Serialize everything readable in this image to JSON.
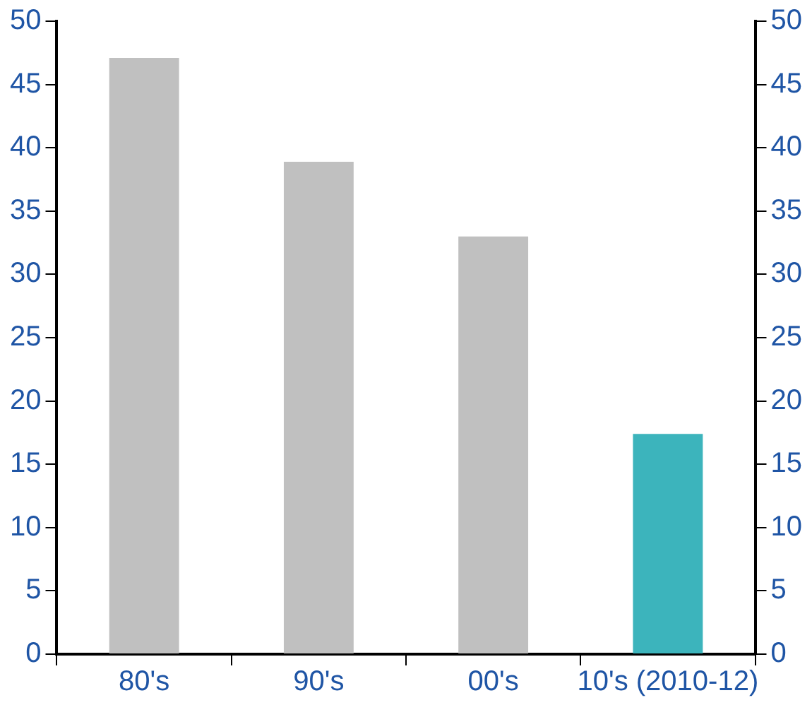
{
  "chart_data": {
    "type": "bar",
    "categories": [
      "80's",
      "90's",
      "00's",
      "10's (2010-12)"
    ],
    "values": [
      47.1,
      38.9,
      33.0,
      17.4
    ],
    "colors": [
      "#c0c0c0",
      "#c0c0c0",
      "#c0c0c0",
      "#3cb4bc"
    ],
    "ylim": [
      0,
      50
    ],
    "yticks": [
      0,
      5,
      10,
      15,
      20,
      25,
      30,
      35,
      40,
      45,
      50
    ],
    "y2lim": [
      0,
      50
    ],
    "y2ticks": [
      0,
      5,
      10,
      15,
      20,
      25,
      30,
      35,
      40,
      45,
      50
    ],
    "grid": false,
    "legend": false
  }
}
